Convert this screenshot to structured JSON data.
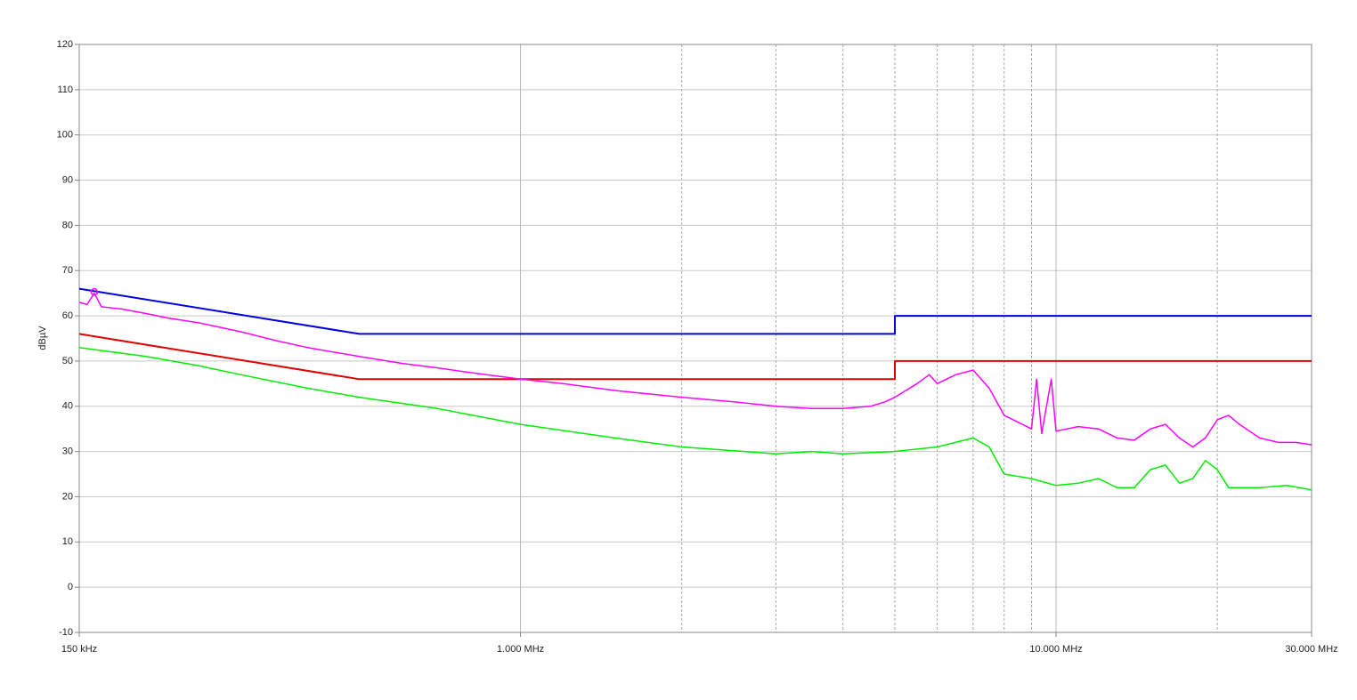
{
  "chart_data": {
    "type": "line",
    "ylabel": "dBµV",
    "log_x": true,
    "grid": true,
    "xlim": [
      0.15,
      30
    ],
    "ylim": [
      -10,
      120
    ],
    "xticks": [
      {
        "value": 0.15,
        "label": "150 kHz"
      },
      {
        "value": 1,
        "label": "1.000 MHz"
      },
      {
        "value": 10,
        "label": "10.000 MHz"
      },
      {
        "value": 30,
        "label": "30.000 MHz"
      }
    ],
    "xgrid_minor": [
      2,
      3,
      4,
      5,
      6,
      7,
      8,
      9,
      20
    ],
    "yticks": [
      -10,
      0,
      10,
      20,
      30,
      40,
      50,
      60,
      70,
      80,
      90,
      100,
      110,
      120
    ],
    "series": [
      {
        "color": "#0000e0",
        "x": [
          0.15,
          0.5,
          5,
          5,
          30
        ],
        "values": [
          66,
          56,
          56,
          60,
          60
        ]
      },
      {
        "color": "#e00000",
        "x": [
          0.15,
          0.5,
          5,
          5,
          30
        ],
        "values": [
          56,
          46,
          46,
          50,
          50
        ]
      },
      {
        "color": "#ff00ff",
        "x": [
          0.15,
          0.155,
          0.16,
          0.165,
          0.18,
          0.2,
          0.22,
          0.25,
          0.3,
          0.35,
          0.4,
          0.5,
          0.6,
          0.7,
          0.8,
          1.0,
          1.2,
          1.5,
          2.0,
          2.5,
          3,
          3.5,
          4,
          4.5,
          4.8,
          5,
          5.5,
          5.8,
          6,
          6.5,
          7,
          7.5,
          8,
          9,
          9.2,
          9.4,
          9.8,
          10,
          11,
          12,
          13,
          14,
          15,
          16,
          17,
          18,
          19,
          20,
          21,
          22,
          24,
          26,
          28,
          30
        ],
        "values": [
          63,
          62.5,
          65,
          62,
          61.5,
          60.5,
          59.5,
          58.5,
          56.5,
          54.5,
          53,
          51,
          49.5,
          48.5,
          47.5,
          46,
          45,
          43.5,
          42,
          41,
          40,
          39.5,
          39.5,
          40,
          41,
          42,
          45,
          47,
          45,
          47,
          48,
          44,
          38,
          35,
          46,
          34,
          46,
          34.5,
          35.5,
          35,
          33,
          32.5,
          35,
          36,
          33,
          31,
          33,
          37,
          38,
          36,
          33,
          32,
          32,
          31.5
        ]
      },
      {
        "color": "#00ee00",
        "x": [
          0.15,
          0.2,
          0.25,
          0.3,
          0.4,
          0.5,
          0.7,
          1,
          1.5,
          2,
          3,
          3.5,
          4,
          5,
          6,
          7,
          7.5,
          8,
          9,
          10,
          11,
          12,
          13,
          14,
          15,
          16,
          17,
          18,
          19,
          20,
          21,
          24,
          27,
          30
        ],
        "values": [
          53,
          51,
          49,
          47,
          44,
          42,
          39.5,
          36,
          33,
          31,
          29.5,
          30,
          29.5,
          30,
          31,
          33,
          31,
          25,
          24,
          22.5,
          23,
          24,
          22,
          22,
          26,
          27,
          23,
          24,
          28,
          26,
          22,
          22,
          22.5,
          21.5
        ]
      }
    ],
    "markers": [
      {
        "x": 0.16,
        "value": 65.3,
        "color": "#ff00ff"
      }
    ]
  }
}
